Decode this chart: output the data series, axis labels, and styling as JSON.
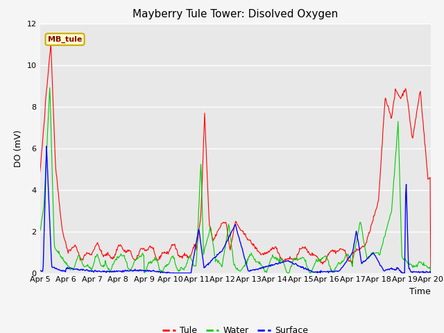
{
  "title": "Mayberry Tule Tower: Disolved Oxygen",
  "ylabel": "DO (mV)",
  "xlabel": "Time",
  "annotation": "MB_tule",
  "ylim": [
    0,
    12
  ],
  "yticks": [
    0,
    2,
    4,
    6,
    8,
    10,
    12
  ],
  "xtick_labels": [
    "Apr 5",
    "Apr 6",
    "Apr 7",
    "Apr 8",
    "Apr 9",
    "Apr 10",
    "Apr 11",
    "Apr 12",
    "Apr 13",
    "Apr 14",
    "Apr 15",
    "Apr 16",
    "Apr 17",
    "Apr 18",
    "Apr 19",
    "Apr 20"
  ],
  "tule_color": "#ff0000",
  "water_color": "#00cc00",
  "surface_color": "#0000ff",
  "plot_bg_color": "#e8e8e8",
  "fig_bg_color": "#f5f5f5",
  "grid_color": "#ffffff",
  "title_fontsize": 11,
  "axis_fontsize": 9,
  "tick_fontsize": 8,
  "legend_fontsize": 9
}
